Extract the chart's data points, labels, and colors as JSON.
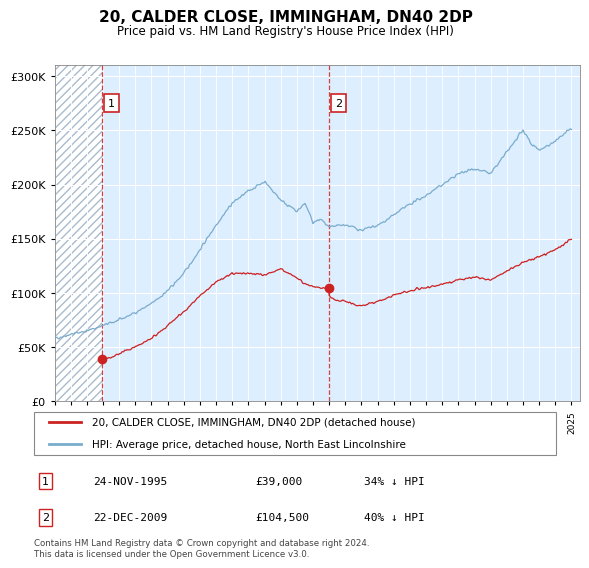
{
  "title": "20, CALDER CLOSE, IMMINGHAM, DN40 2DP",
  "subtitle": "Price paid vs. HM Land Registry's House Price Index (HPI)",
  "hpi_label": "HPI: Average price, detached house, North East Lincolnshire",
  "price_label": "20, CALDER CLOSE, IMMINGHAM, DN40 2DP (detached house)",
  "footer": "Contains HM Land Registry data © Crown copyright and database right 2024.\nThis data is licensed under the Open Government Licence v3.0.",
  "ylim": [
    0,
    310000
  ],
  "yticks": [
    0,
    50000,
    100000,
    150000,
    200000,
    250000,
    300000
  ],
  "xlim_start": 1993.0,
  "xlim_end": 2025.5,
  "sale_points": [
    {
      "num": 1,
      "year": 1995.917,
      "price": 39000,
      "date": "24-NOV-1995",
      "pct": "34% ↓ HPI"
    },
    {
      "num": 2,
      "year": 2009.972,
      "price": 104500,
      "date": "22-DEC-2009",
      "pct": "40% ↓ HPI"
    }
  ],
  "hpi_color": "#7aaccc",
  "price_color": "#cc2222",
  "dashed_color": "#cc2222",
  "annotation_box_color": "#cc2222",
  "hpi_annual_x": [
    1993,
    1994,
    1995,
    1996,
    1997,
    1998,
    1999,
    2000,
    2001,
    2002,
    2003,
    2004,
    2005,
    2006,
    2007,
    2008,
    2008.5,
    2009,
    2009.5,
    2010,
    2010.5,
    2011,
    2012,
    2013,
    2014,
    2015,
    2016,
    2017,
    2018,
    2019,
    2020,
    2021,
    2022,
    2022.5,
    2023,
    2024,
    2025
  ],
  "hpi_annual_y": [
    58000,
    62000,
    65000,
    70000,
    75000,
    82000,
    90000,
    102000,
    118000,
    140000,
    163000,
    183000,
    194000,
    203000,
    186000,
    175000,
    183000,
    165000,
    168000,
    160000,
    162000,
    163000,
    158000,
    162000,
    172000,
    182000,
    190000,
    200000,
    210000,
    215000,
    210000,
    230000,
    250000,
    238000,
    232000,
    240000,
    252000
  ],
  "price_annual_x": [
    1995.917,
    1996.5,
    1997,
    1998,
    1999,
    2000,
    2001,
    2002,
    2003,
    2004,
    2005,
    2006,
    2007,
    2007.5,
    2008,
    2008.5,
    2009,
    2009.5,
    2009.972,
    2010,
    2010.5,
    2011,
    2012,
    2012.5,
    2013,
    2014,
    2015,
    2016,
    2017,
    2018,
    2019,
    2020,
    2021,
    2022,
    2023,
    2024,
    2025
  ],
  "price_annual_y": [
    39000,
    41000,
    44000,
    50000,
    58000,
    70000,
    83000,
    97000,
    110000,
    118000,
    118000,
    117000,
    122000,
    118000,
    115000,
    108000,
    106000,
    104500,
    104500,
    97000,
    93000,
    92000,
    88000,
    90000,
    92000,
    98000,
    102000,
    105000,
    108000,
    112000,
    115000,
    112000,
    120000,
    128000,
    133000,
    140000,
    150000
  ]
}
